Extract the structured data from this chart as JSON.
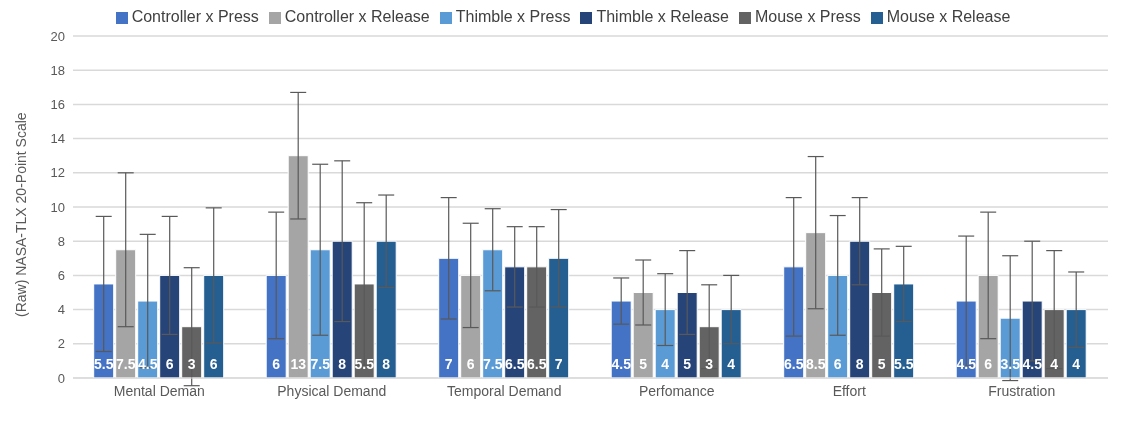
{
  "chart_data": {
    "type": "bar",
    "ylabel": "(Raw) NASA-TLX 20-Point Scale",
    "categories": [
      "Mental Deman",
      "Physical Demand",
      "Temporal Demand",
      "Perfomance",
      "Effort",
      "Frustration"
    ],
    "series": [
      {
        "name": "Controller x Press",
        "color": "#4472c4",
        "values": [
          5.5,
          6,
          7,
          4.5,
          6.5,
          4.5
        ],
        "errors": [
          3.95,
          3.7,
          3.55,
          1.35,
          4.05,
          3.8
        ]
      },
      {
        "name": "Controller x Release",
        "color": "#a5a5a5",
        "values": [
          7.5,
          13,
          6,
          5,
          8.5,
          6
        ],
        "errors": [
          4.5,
          3.7,
          3.05,
          1.9,
          4.45,
          3.7
        ]
      },
      {
        "name": "Thimble x Press",
        "color": "#5b9bd5",
        "values": [
          4.5,
          7.5,
          7.5,
          4,
          6,
          3.5
        ],
        "errors": [
          3.9,
          5,
          2.4,
          2.1,
          3.5,
          3.65
        ]
      },
      {
        "name": "Thimble x Release",
        "color": "#264478",
        "values": [
          6,
          8,
          6.5,
          5,
          8,
          4.5
        ],
        "errors": [
          3.45,
          4.7,
          2.35,
          2.45,
          2.55,
          3.5
        ]
      },
      {
        "name": "Mouse x Press",
        "color": "#636363",
        "values": [
          3,
          5.5,
          6.5,
          3,
          5,
          4
        ],
        "errors": [
          3.45,
          4.75,
          2.35,
          2.45,
          2.55,
          3.45
        ]
      },
      {
        "name": "Mouse x Release",
        "color": "#255e91",
        "values": [
          6,
          8,
          7,
          4,
          5.5,
          4
        ],
        "errors": [
          3.95,
          2.7,
          2.85,
          2,
          2.2,
          2.2
        ]
      }
    ],
    "ylim": [
      0,
      20
    ],
    "yticks": [
      0,
      2,
      4,
      6,
      8,
      10,
      12,
      14,
      16,
      18,
      20
    ],
    "grid": "y",
    "legend": "top",
    "data_labels": true
  }
}
